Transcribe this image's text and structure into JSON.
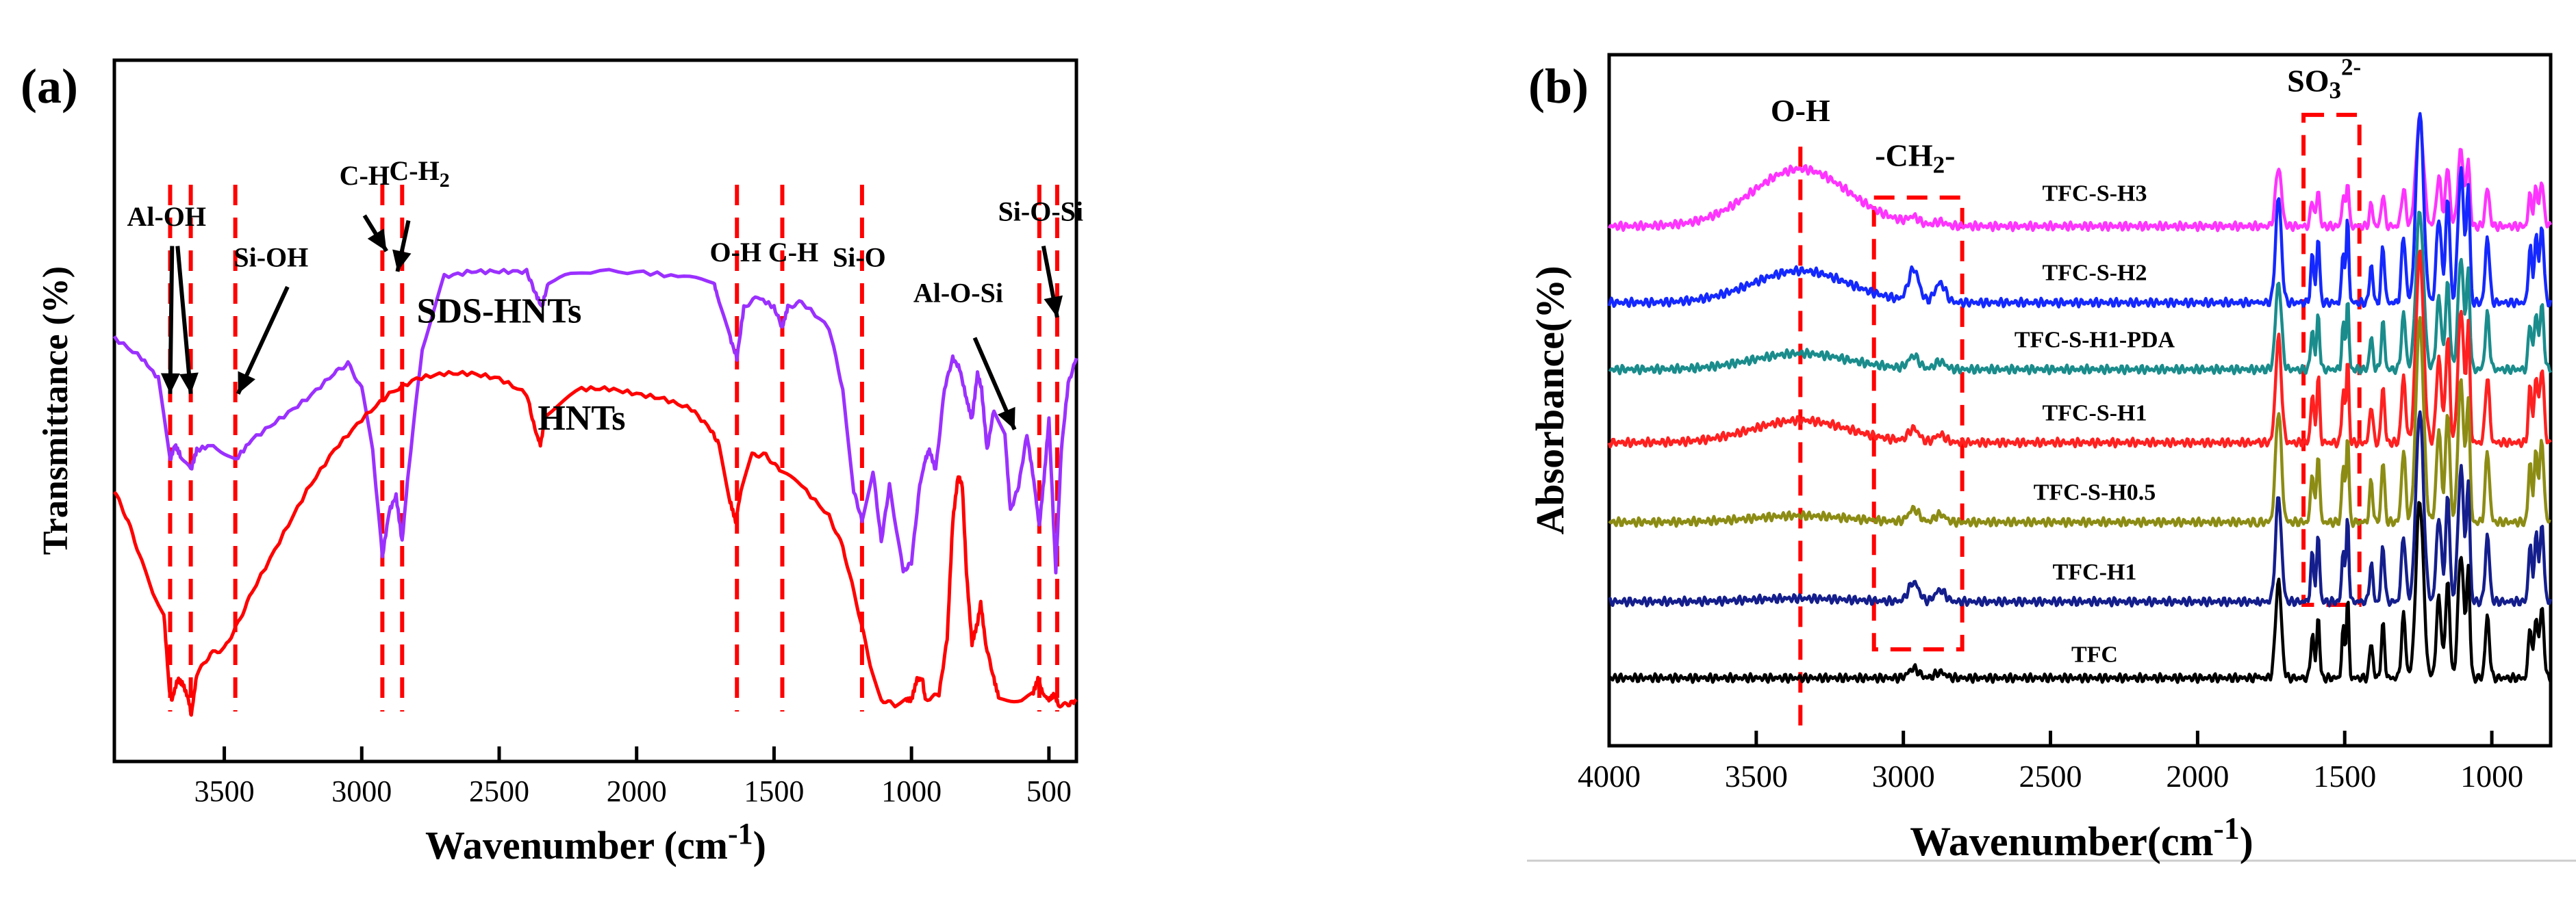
{
  "chart_data": [
    {
      "type": "line",
      "panel_label": "(a)",
      "xlabel_base": "Wavenumber (cm",
      "xlabel_exp": "-1",
      "xlabel_close": ")",
      "ylabel": "Transmittance (%)",
      "xlim": [
        3900,
        400
      ],
      "xticks": [
        {
          "value": 3500,
          "label": "3500"
        },
        {
          "value": 3000,
          "label": "3000"
        },
        {
          "value": 2500,
          "label": "2500"
        },
        {
          "value": 2000,
          "label": "2000"
        },
        {
          "value": 1500,
          "label": "1500"
        },
        {
          "value": 1000,
          "label": "1000"
        },
        {
          "value": 500,
          "label": "500"
        }
      ],
      "series": [
        {
          "name": "SDS-HNTs",
          "color": "#9b30ff",
          "points": [
            [
              3900,
              0.26
            ],
            [
              3800,
              0.3
            ],
            [
              3740,
              0.34
            ],
            [
              3697,
              0.5
            ],
            [
              3680,
              0.47
            ],
            [
              3660,
              0.49
            ],
            [
              3622,
              0.52
            ],
            [
              3600,
              0.48
            ],
            [
              3540,
              0.47
            ],
            [
              3460,
              0.5
            ],
            [
              3400,
              0.46
            ],
            [
              3300,
              0.42
            ],
            [
              3200,
              0.38
            ],
            [
              3100,
              0.33
            ],
            [
              3050,
              0.31
            ],
            [
              3000,
              0.36
            ],
            [
              2960,
              0.48
            ],
            [
              2925,
              0.69
            ],
            [
              2900,
              0.6
            ],
            [
              2875,
              0.57
            ],
            [
              2853,
              0.66
            ],
            [
              2830,
              0.52
            ],
            [
              2780,
              0.28
            ],
            [
              2700,
              0.14
            ],
            [
              2600,
              0.13
            ],
            [
              2500,
              0.13
            ],
            [
              2400,
              0.13
            ],
            [
              2370,
              0.17
            ],
            [
              2345,
              0.2
            ],
            [
              2320,
              0.15
            ],
            [
              2200,
              0.13
            ],
            [
              2000,
              0.13
            ],
            [
              1850,
              0.14
            ],
            [
              1720,
              0.15
            ],
            [
              1700,
              0.19
            ],
            [
              1660,
              0.26
            ],
            [
              1635,
              0.3
            ],
            [
              1610,
              0.2
            ],
            [
              1560,
              0.18
            ],
            [
              1500,
              0.2
            ],
            [
              1470,
              0.24
            ],
            [
              1450,
              0.2
            ],
            [
              1400,
              0.19
            ],
            [
              1300,
              0.24
            ],
            [
              1250,
              0.36
            ],
            [
              1210,
              0.56
            ],
            [
              1180,
              0.62
            ],
            [
              1140,
              0.52
            ],
            [
              1110,
              0.66
            ],
            [
              1080,
              0.55
            ],
            [
              1030,
              0.72
            ],
            [
              1000,
              0.7
            ],
            [
              970,
              0.55
            ],
            [
              950,
              0.5
            ],
            [
              935,
              0.48
            ],
            [
              912,
              0.52
            ],
            [
              880,
              0.36
            ],
            [
              850,
              0.3
            ],
            [
              825,
              0.32
            ],
            [
              800,
              0.38
            ],
            [
              780,
              0.42
            ],
            [
              760,
              0.33
            ],
            [
              745,
              0.36
            ],
            [
              725,
              0.48
            ],
            [
              700,
              0.4
            ],
            [
              660,
              0.45
            ],
            [
              640,
              0.6
            ],
            [
              610,
              0.55
            ],
            [
              580,
              0.45
            ],
            [
              555,
              0.54
            ],
            [
              535,
              0.63
            ],
            [
              515,
              0.52
            ],
            [
              500,
              0.42
            ],
            [
              475,
              0.72
            ],
            [
              455,
              0.48
            ],
            [
              430,
              0.35
            ],
            [
              400,
              0.3
            ]
          ]
        },
        {
          "name": "HNTs",
          "color": "#ff0000",
          "points": [
            [
              3900,
              0.56
            ],
            [
              3850,
              0.62
            ],
            [
              3800,
              0.7
            ],
            [
              3760,
              0.76
            ],
            [
              3720,
              0.8
            ],
            [
              3700,
              0.95
            ],
            [
              3690,
              0.97
            ],
            [
              3670,
              0.93
            ],
            [
              3650,
              0.94
            ],
            [
              3630,
              0.97
            ],
            [
              3620,
              1.0
            ],
            [
              3600,
              0.92
            ],
            [
              3550,
              0.88
            ],
            [
              3500,
              0.87
            ],
            [
              3450,
              0.82
            ],
            [
              3400,
              0.76
            ],
            [
              3300,
              0.66
            ],
            [
              3200,
              0.56
            ],
            [
              3100,
              0.48
            ],
            [
              3000,
              0.42
            ],
            [
              2900,
              0.37
            ],
            [
              2800,
              0.34
            ],
            [
              2700,
              0.33
            ],
            [
              2600,
              0.33
            ],
            [
              2500,
              0.34
            ],
            [
              2400,
              0.37
            ],
            [
              2370,
              0.44
            ],
            [
              2350,
              0.47
            ],
            [
              2330,
              0.41
            ],
            [
              2200,
              0.36
            ],
            [
              2100,
              0.36
            ],
            [
              2000,
              0.37
            ],
            [
              1900,
              0.38
            ],
            [
              1800,
              0.4
            ],
            [
              1730,
              0.44
            ],
            [
              1700,
              0.47
            ],
            [
              1660,
              0.58
            ],
            [
              1640,
              0.62
            ],
            [
              1620,
              0.56
            ],
            [
              1580,
              0.49
            ],
            [
              1530,
              0.49
            ],
            [
              1480,
              0.52
            ],
            [
              1400,
              0.55
            ],
            [
              1300,
              0.61
            ],
            [
              1250,
              0.67
            ],
            [
              1200,
              0.78
            ],
            [
              1150,
              0.9
            ],
            [
              1110,
              0.97
            ],
            [
              1060,
              0.98
            ],
            [
              1020,
              0.97
            ],
            [
              1000,
              0.97
            ],
            [
              980,
              0.93
            ],
            [
              960,
              0.93
            ],
            [
              950,
              0.97
            ],
            [
              900,
              0.96
            ],
            [
              870,
              0.85
            ],
            [
              850,
              0.62
            ],
            [
              830,
              0.53
            ],
            [
              815,
              0.55
            ],
            [
              800,
              0.72
            ],
            [
              780,
              0.86
            ],
            [
              760,
              0.82
            ],
            [
              748,
              0.78
            ],
            [
              730,
              0.86
            ],
            [
              700,
              0.93
            ],
            [
              680,
              0.97
            ],
            [
              600,
              0.97
            ],
            [
              560,
              0.96
            ],
            [
              540,
              0.93
            ],
            [
              520,
              0.96
            ],
            [
              500,
              0.97
            ],
            [
              480,
              0.96
            ],
            [
              465,
              0.98
            ],
            [
              430,
              0.98
            ],
            [
              400,
              0.97
            ]
          ]
        }
      ],
      "series_labels": [
        {
          "text": "SDS-HNTs",
          "x": 2500,
          "y": 0.23
        },
        {
          "text": "HNTs",
          "x": 2200,
          "y": 0.44
        }
      ],
      "marker_lines": [
        3697,
        3622,
        3460,
        2925,
        2853,
        1635,
        1470,
        1180,
        535,
        470
      ],
      "annotations": [
        {
          "text": "Al-OH",
          "x": 3710,
          "y": 0.04
        },
        {
          "text": "Si-OH",
          "x": 3330,
          "y": 0.12
        },
        {
          "text": "C-H",
          "x": 2990,
          "y": -0.04
        },
        {
          "text": "C-H",
          "x": 2790,
          "y": -0.05,
          "sub": "2"
        },
        {
          "text": "O-H",
          "x": 1640,
          "y": 0.11
        },
        {
          "text": "C-H",
          "x": 1430,
          "y": 0.11
        },
        {
          "text": "Si-O",
          "x": 1190,
          "y": 0.12
        },
        {
          "text": "Al-O-Si",
          "x": 830,
          "y": 0.19
        },
        {
          "text": "Si-O-Si",
          "x": 530,
          "y": 0.03
        }
      ],
      "arrows": [
        {
          "from": [
            3690,
            0.08
          ],
          "to": [
            3697,
            0.37
          ]
        },
        {
          "from": [
            3670,
            0.08
          ],
          "to": [
            3622,
            0.37
          ]
        },
        {
          "from": [
            3270,
            0.16
          ],
          "to": [
            3450,
            0.37
          ]
        },
        {
          "from": [
            2990,
            0.02
          ],
          "to": [
            2910,
            0.09
          ]
        },
        {
          "from": [
            2830,
            0.03
          ],
          "to": [
            2870,
            0.13
          ]
        },
        {
          "from": [
            770,
            0.26
          ],
          "to": [
            625,
            0.44
          ]
        },
        {
          "from": [
            520,
            0.08
          ],
          "to": [
            470,
            0.22
          ]
        }
      ]
    },
    {
      "type": "line",
      "panel_label": "(b)",
      "xlabel_base": "Wavenumber(cm",
      "xlabel_exp": "-1",
      "xlabel_close": ")",
      "ylabel": "Absorbance(%)",
      "xlim": [
        4000,
        800
      ],
      "xticks": [
        {
          "value": 4000,
          "label": "4000"
        },
        {
          "value": 3500,
          "label": "3500"
        },
        {
          "value": 3000,
          "label": "3000"
        },
        {
          "value": 2500,
          "label": "2500"
        },
        {
          "value": 2000,
          "label": "2000"
        },
        {
          "value": 1500,
          "label": "1500"
        },
        {
          "value": 1000,
          "label": "1000"
        }
      ],
      "series": [
        {
          "name": "TFC-S-H3",
          "color": "#ff33ff",
          "baseline": 0.205,
          "oh": 0.09,
          "ch": 0.01,
          "peak": 0.17
        },
        {
          "name": "TFC-S-H2",
          "color": "#1428ff",
          "baseline": 0.325,
          "oh": 0.05,
          "ch": 0.05,
          "peak": 0.3
        },
        {
          "name": "TFC-S-H1-PDA",
          "color": "#1a8c8c",
          "baseline": 0.43,
          "oh": 0.025,
          "ch": 0.02,
          "peak": 0.25
        },
        {
          "name": "TFC-S-H1",
          "color": "#ff2020",
          "baseline": 0.545,
          "oh": 0.035,
          "ch": 0.02,
          "peak": 0.3
        },
        {
          "name": "TFC-S-H0.5",
          "color": "#8c8c14",
          "baseline": 0.67,
          "oh": 0.01,
          "ch": 0.02,
          "peak": 0.32
        },
        {
          "name": "TFC-H1",
          "color": "#141e8c",
          "baseline": 0.795,
          "oh": 0.005,
          "ch": 0.03,
          "peak": 0.3
        },
        {
          "name": "TFC",
          "color": "#000000",
          "baseline": 0.915,
          "oh": 0.0,
          "ch": 0.015,
          "peak": 0.28
        }
      ],
      "series_labels": [
        {
          "text": "TFC-S-H3",
          "x": 2350,
          "y": 0.165
        },
        {
          "text": "TFC-S-H2",
          "x": 2350,
          "y": 0.29
        },
        {
          "text": "TFC-S-H1-PDA",
          "x": 2350,
          "y": 0.395
        },
        {
          "text": "TFC-S-H1",
          "x": 2350,
          "y": 0.51
        },
        {
          "text": "TFC-S-H0.5",
          "x": 2350,
          "y": 0.635
        },
        {
          "text": "TFC-H1",
          "x": 2350,
          "y": 0.76
        },
        {
          "text": "TFC",
          "x": 2350,
          "y": 0.89
        }
      ],
      "marker_lines": [
        3350
      ],
      "boxes": [
        {
          "x0": 3100,
          "x1": 2800,
          "y0": 0.16,
          "y1": 0.87
        },
        {
          "x0": 1640,
          "x1": 1450,
          "y0": 0.03,
          "y1": 0.8
        }
      ],
      "annotations": [
        {
          "text": "O-H",
          "x": 3350,
          "y": 0.04
        },
        {
          "text": "-CH",
          "x": 2960,
          "y": 0.11,
          "sub": "2",
          "after": "-"
        },
        {
          "text": "SO",
          "x": 1570,
          "y": -0.05,
          "sub": "3",
          "sup": "2-"
        }
      ]
    }
  ]
}
